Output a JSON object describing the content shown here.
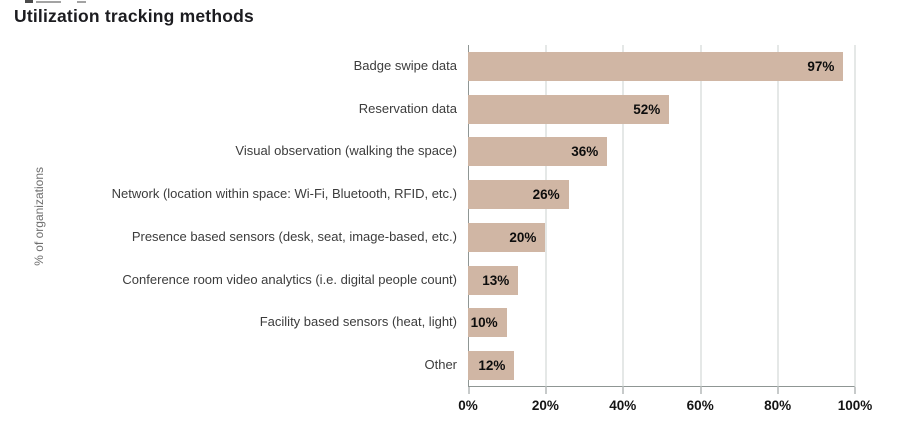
{
  "title": "Utilization tracking methods",
  "chart_data": {
    "type": "bar",
    "orientation": "horizontal",
    "title": "Utilization tracking methods",
    "axis_title_y": "% of organizations",
    "categories": [
      "Badge swipe data",
      "Reservation data",
      "Visual observation (walking the space)",
      "Network (location within space: Wi-Fi, Bluetooth, RFID, etc.)",
      "Presence based sensors (desk, seat, image-based, etc.)",
      "Conference room video analytics (i.e. digital people count)",
      "Facility based sensors (heat, light)",
      "Other"
    ],
    "values": [
      97,
      52,
      36,
      26,
      20,
      13,
      10,
      12
    ],
    "value_labels": [
      "97%",
      "52%",
      "36%",
      "26%",
      "20%",
      "13%",
      "10%",
      "12%"
    ],
    "x_ticks": [
      "0%",
      "20%",
      "40%",
      "60%",
      "80%",
      "100%"
    ],
    "xlim": [
      0,
      100
    ],
    "grid": true,
    "legend": false,
    "data_label_position": "inside-end",
    "colors": {
      "bar": "#d0b6a4",
      "gridline": "#cbd1cf",
      "axis_line": "#8f9694",
      "title_text": "#1c1c20",
      "category_text": "#3c3c3c",
      "value_text": "#0d0d0d",
      "axis_title_text": "#6e6e6e"
    }
  }
}
